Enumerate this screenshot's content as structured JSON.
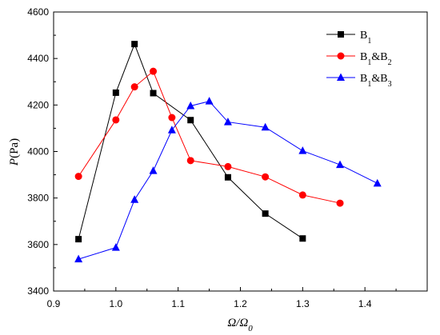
{
  "chart_data": {
    "type": "line",
    "x_axis": {
      "label_main": "Ω/Ω",
      "label_sub": "0",
      "lim": [
        0.9,
        1.5
      ],
      "ticks": [
        0.9,
        1.0,
        1.1,
        1.2,
        1.3,
        1.4
      ],
      "tick_labels": [
        "0.9",
        "1.0",
        "1.1",
        "1.2",
        "1.3",
        "1.4"
      ]
    },
    "y_axis": {
      "label_italic": "P",
      "label_unit": "(Pa)",
      "lim": [
        3400,
        4600
      ],
      "ticks": [
        3400,
        3600,
        3800,
        4000,
        4200,
        4400,
        4600
      ],
      "tick_labels": [
        "3400",
        "3600",
        "3800",
        "4000",
        "4200",
        "4400",
        "4600"
      ]
    },
    "grid": false,
    "legend_position": "top-right",
    "series": [
      {
        "name": "B1",
        "name_parts": [
          {
            "t": "B",
            "sub": false
          },
          {
            "t": "1",
            "sub": true
          }
        ],
        "color": "#000000",
        "marker": "square",
        "x": [
          0.94,
          1.0,
          1.03,
          1.06,
          1.12,
          1.18,
          1.24,
          1.3
        ],
        "y": [
          3623,
          4253,
          4462,
          4251,
          4135,
          3889,
          3733,
          3626
        ]
      },
      {
        "name": "B1&B2",
        "name_parts": [
          {
            "t": "B",
            "sub": false
          },
          {
            "t": "1",
            "sub": true
          },
          {
            "t": "&B",
            "sub": false
          },
          {
            "t": "2",
            "sub": true
          }
        ],
        "color": "#ff0000",
        "marker": "circle",
        "x": [
          0.94,
          1.0,
          1.03,
          1.06,
          1.09,
          1.12,
          1.18,
          1.24,
          1.3,
          1.36
        ],
        "y": [
          3893,
          4136,
          4278,
          4345,
          4146,
          3961,
          3935,
          3891,
          3813,
          3778
        ]
      },
      {
        "name": "B1&B3",
        "name_parts": [
          {
            "t": "B",
            "sub": false
          },
          {
            "t": "1",
            "sub": true
          },
          {
            "t": "&B",
            "sub": false
          },
          {
            "t": "3",
            "sub": true
          }
        ],
        "color": "#0000ff",
        "marker": "triangle",
        "x": [
          0.94,
          1.0,
          1.03,
          1.06,
          1.09,
          1.12,
          1.15,
          1.18,
          1.24,
          1.3,
          1.36,
          1.42
        ],
        "y": [
          3537,
          3587,
          3793,
          3917,
          4092,
          4196,
          4216,
          4127,
          4104,
          4003,
          3943,
          3863
        ]
      }
    ]
  }
}
